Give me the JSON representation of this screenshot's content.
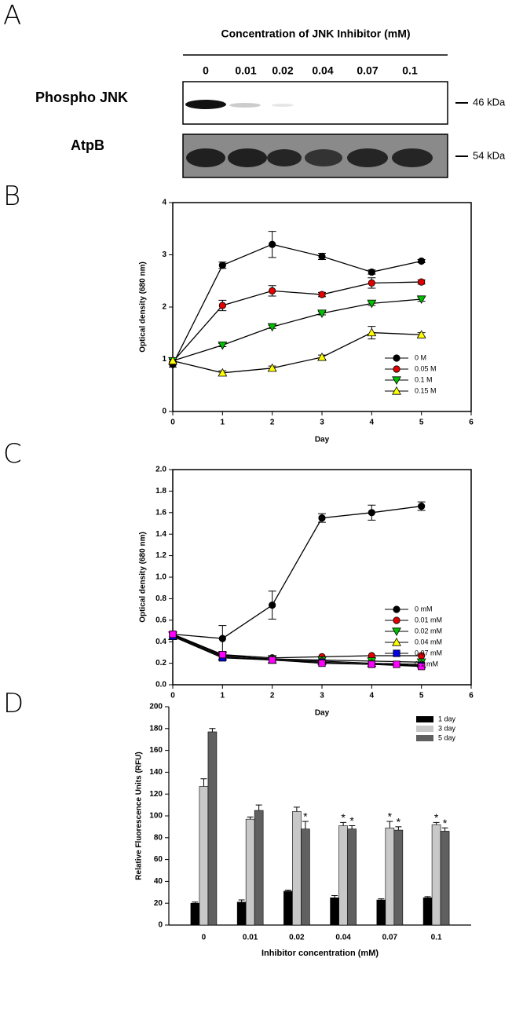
{
  "panels": [
    "A",
    "B",
    "C",
    "D"
  ],
  "blot": {
    "title": "Concentration of JNK Inhibitor (mM)",
    "lanes": [
      "0",
      "0.01",
      "0.02",
      "0.04",
      "0.07",
      "0.1"
    ],
    "rows": [
      {
        "label": "Phospho JNK",
        "marker": "46 kDa"
      },
      {
        "label": "AtpB",
        "marker": "54 kDa"
      }
    ]
  },
  "chart_data": [
    {
      "type": "line",
      "xlabel": "Day",
      "ylabel": "Optical density (680 nm)",
      "x": [
        0,
        1,
        2,
        3,
        4,
        5
      ],
      "xlim": [
        0,
        6
      ],
      "xticks": [
        0,
        1,
        2,
        3,
        4,
        5,
        6
      ],
      "ylim": [
        0,
        4
      ],
      "yticks": [
        0,
        1,
        2,
        3,
        4
      ],
      "legend": "lower right",
      "series": [
        {
          "name": "0 M",
          "color": "#000000",
          "marker": "circle",
          "values": [
            0.9,
            2.8,
            3.2,
            2.97,
            2.67,
            2.88
          ],
          "errors": [
            0.05,
            0.06,
            0.25,
            0.06,
            0.04,
            0.03
          ]
        },
        {
          "name": "0.05 M",
          "color": "#e00000",
          "marker": "circle",
          "values": [
            0.95,
            2.03,
            2.31,
            2.24,
            2.46,
            2.48
          ],
          "errors": [
            0.05,
            0.1,
            0.1,
            0.04,
            0.1,
            0.04
          ]
        },
        {
          "name": "0.1 M",
          "color": "#00c000",
          "marker": "triangle-down",
          "values": [
            0.97,
            1.27,
            1.62,
            1.88,
            2.07,
            2.15
          ],
          "errors": [
            0.03,
            0.03,
            0.03,
            0.03,
            0.04,
            0.04
          ]
        },
        {
          "name": "0.15 M",
          "color": "#ffff00",
          "marker": "triangle",
          "values": [
            0.97,
            0.74,
            0.83,
            1.04,
            1.51,
            1.47
          ],
          "errors": [
            0.03,
            0.04,
            0.04,
            0.04,
            0.12,
            0.04
          ]
        }
      ]
    },
    {
      "type": "line",
      "xlabel": "Day",
      "ylabel": "Optical density (680 nm)",
      "x": [
        0,
        1,
        2,
        3,
        4,
        5
      ],
      "xlim": [
        0,
        6
      ],
      "xticks": [
        0,
        1,
        2,
        3,
        4,
        5,
        6
      ],
      "ylim": [
        0,
        2
      ],
      "yticks": [
        {
          "value": 0,
          "label": "0.0"
        },
        0.2,
        0.4,
        0.6,
        0.8,
        {
          "value": 1,
          "label": "1.0"
        },
        1.2,
        1.4,
        1.6,
        1.8,
        {
          "value": 2,
          "label": "2.0"
        }
      ],
      "legend": "lower right",
      "series": [
        {
          "name": "0 mM",
          "color": "#000000",
          "marker": "circle",
          "values": [
            0.47,
            0.43,
            0.74,
            1.55,
            1.6,
            1.66
          ],
          "errors": [
            0.02,
            0.12,
            0.13,
            0.04,
            0.07,
            0.04
          ]
        },
        {
          "name": "0.01 mM",
          "color": "#e00000",
          "marker": "circle",
          "values": [
            0.47,
            0.28,
            0.25,
            0.26,
            0.27,
            0.27
          ]
        },
        {
          "name": "0.02 mM",
          "color": "#00c000",
          "marker": "triangle-down",
          "values": [
            0.46,
            0.27,
            0.24,
            0.23,
            0.22,
            0.21
          ]
        },
        {
          "name": "0.04 mM",
          "color": "#ffff00",
          "marker": "triangle",
          "values": [
            0.45,
            0.26,
            0.23,
            0.22,
            0.2,
            0.19
          ]
        },
        {
          "name": "0.07 mM",
          "color": "#0000e0",
          "marker": "square",
          "values": [
            0.45,
            0.25,
            0.23,
            0.21,
            0.19,
            0.18
          ]
        },
        {
          "name": "0.1 mM",
          "color": "#ff00ff",
          "marker": "square",
          "values": [
            0.47,
            0.28,
            0.23,
            0.2,
            0.19,
            0.17
          ]
        }
      ]
    },
    {
      "type": "bar",
      "xlabel": "Inhibitor concentration (mM)",
      "ylabel": "Relative Fluorescence Units (RFU)",
      "categories": [
        "0",
        "0.01",
        "0.02",
        "0.04",
        "0.07",
        "0.1"
      ],
      "ylim": [
        0,
        200
      ],
      "yticks": [
        0,
        20,
        40,
        60,
        80,
        100,
        120,
        140,
        160,
        180,
        200
      ],
      "legend": "upper right",
      "series": [
        {
          "name": "1 day",
          "color": "#000000",
          "values": [
            20,
            21,
            31,
            25,
            23,
            25
          ],
          "errors": [
            1,
            2,
            1,
            2,
            1,
            1
          ]
        },
        {
          "name": "3 day",
          "color": "#c8c8c8",
          "values": [
            127,
            97,
            104,
            91,
            89,
            92
          ],
          "errors": [
            7,
            2,
            4,
            3,
            6,
            2
          ],
          "annotations": [
            null,
            null,
            null,
            "*",
            "*",
            "*"
          ]
        },
        {
          "name": "5 day",
          "color": "#606060",
          "values": [
            177,
            105,
            88,
            88,
            87,
            86
          ],
          "errors": [
            3,
            5,
            7,
            3,
            3,
            3
          ],
          "annotations": [
            null,
            null,
            "*",
            "*",
            "*",
            "*"
          ]
        }
      ]
    }
  ]
}
